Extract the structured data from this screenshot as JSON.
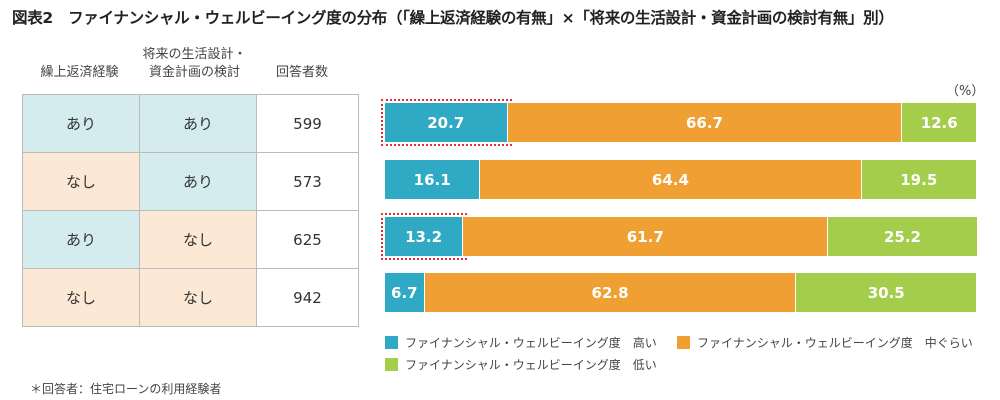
{
  "title": "図表2　ファイナンシャル・ウェルビーイング度の分布（「繰上返済経験の有無」×「将来の生活設計・資金計画の検討有無」別）",
  "table": {
    "headers": [
      "繰上返済経験",
      "将来の生活設計・",
      "資金計画の検討",
      "回答者数"
    ],
    "rows": [
      [
        "あり",
        "あり",
        "599"
      ],
      [
        "なし",
        "あり",
        "573"
      ],
      [
        "あり",
        "なし",
        "625"
      ],
      [
        "なし",
        "なし",
        "942"
      ]
    ]
  },
  "note": "＊回答者：住宅ローンの利用経験者",
  "chart_data": {
    "type": "bar",
    "orientation": "horizontal",
    "stacked": true,
    "unit": "（%）",
    "categories": [
      "あり/あり",
      "なし/あり",
      "あり/なし",
      "なし/なし"
    ],
    "series": [
      {
        "name": "ファイナンシャル・ウェルビーイング度　高い",
        "color": "#2fa9c4",
        "values": [
          20.7,
          16.1,
          13.2,
          6.7
        ]
      },
      {
        "name": "ファイナンシャル・ウェルビーイング度　中ぐらい",
        "color": "#f0a033",
        "values": [
          66.7,
          64.4,
          61.7,
          62.8
        ]
      },
      {
        "name": "ファイナンシャル・ウェルビーイング度　低い",
        "color": "#a4cd4b",
        "values": [
          12.6,
          19.5,
          25.2,
          30.5
        ]
      }
    ],
    "highlighted": [
      0,
      2
    ],
    "xlim": [
      0,
      100
    ]
  }
}
